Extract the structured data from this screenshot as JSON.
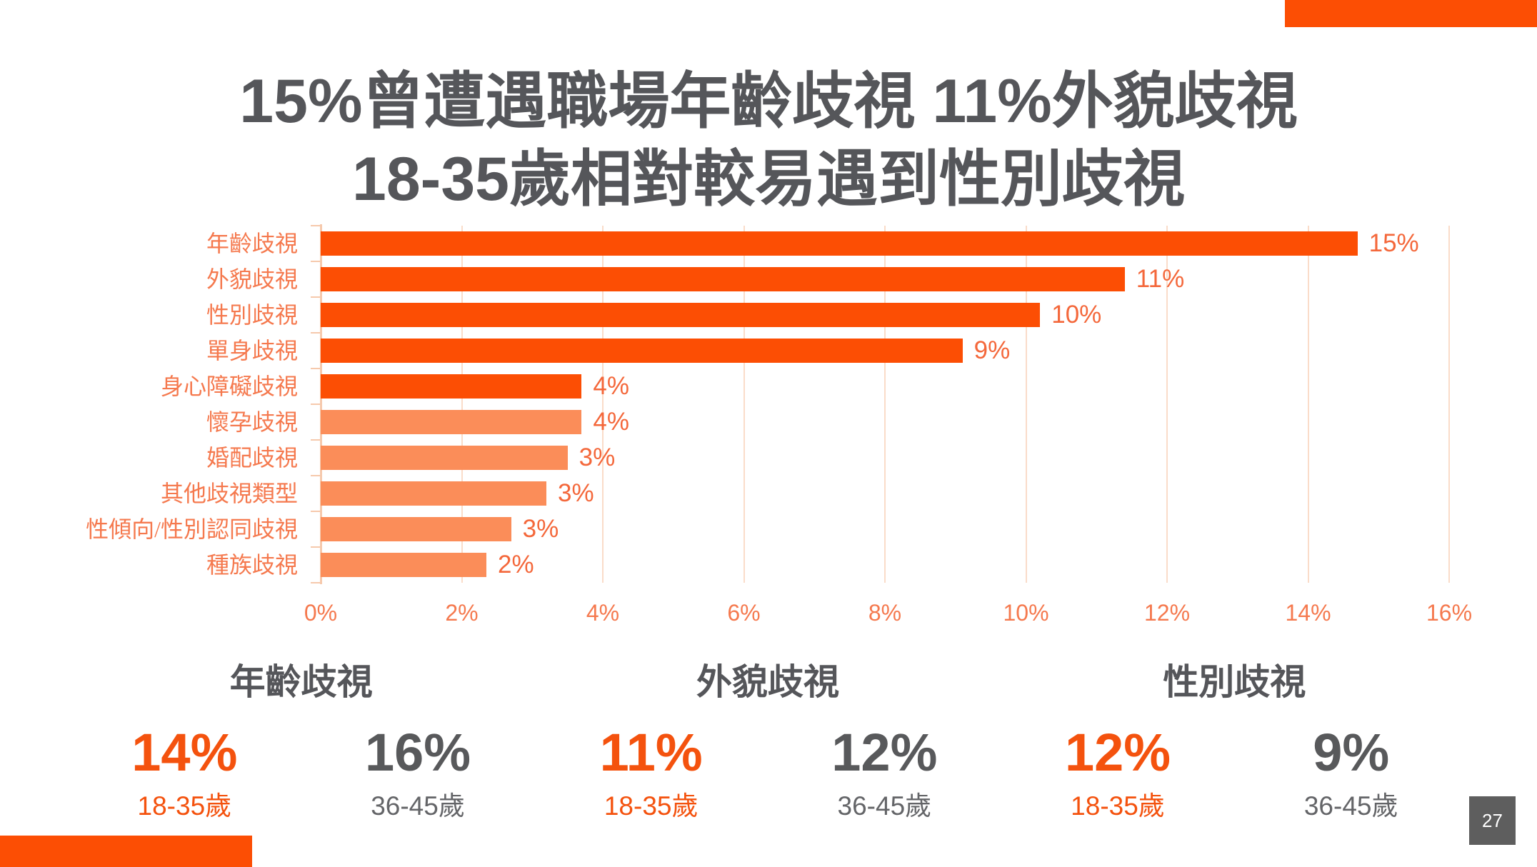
{
  "slide": {
    "title_line1": "15%曾遭遇職場年齡歧視 11%外貌歧視",
    "title_line2": "18-35歲相對較易遇到性別歧視",
    "page_number": "27"
  },
  "colors": {
    "accent": "#FC4E04",
    "bar_dark": "#FC4E04",
    "bar_light": "#FB8D59",
    "cat_label": "#F5794E",
    "value_label": "#F4673A",
    "axis_label": "#F5794E",
    "gridline": "#FADCC9",
    "axis_line": "#F6C9AC",
    "title_gray": "#55565A",
    "stat_gray": "#58595B",
    "stat_orange": "#F4520E",
    "age_gray": "#646568",
    "badge_bg": "#5E5E5E"
  },
  "chart_data": {
    "type": "bar",
    "orientation": "horizontal",
    "title": "",
    "xlabel": "",
    "ylabel": "",
    "grid": true,
    "xlim": [
      0,
      16
    ],
    "x_ticks": [
      "0%",
      "2%",
      "4%",
      "6%",
      "8%",
      "10%",
      "12%",
      "14%",
      "16%"
    ],
    "categories": [
      "年齡歧視",
      "外貌歧視",
      "性別歧視",
      "單身歧視",
      "身心障礙歧視",
      "懷孕歧視",
      "婚配歧視",
      "其他歧視類型",
      "性傾向/性別認同歧視",
      "種族歧視"
    ],
    "values": [
      14.7,
      11.4,
      10.2,
      9.1,
      3.7,
      3.7,
      3.5,
      3.2,
      2.7,
      2.35
    ],
    "value_labels": [
      "15%",
      "11%",
      "10%",
      "9%",
      "4%",
      "4%",
      "3%",
      "3%",
      "3%",
      "2%"
    ],
    "bar_styles": [
      "dark",
      "dark",
      "dark",
      "dark",
      "dark",
      "light",
      "light",
      "light",
      "light",
      "light"
    ]
  },
  "stats": [
    {
      "title": "年齡歧視",
      "primary": {
        "value": "14%",
        "label": "18-35歲"
      },
      "secondary": {
        "value": "16%",
        "label": "36-45歲"
      }
    },
    {
      "title": "外貌歧視",
      "primary": {
        "value": "11%",
        "label": "18-35歲"
      },
      "secondary": {
        "value": "12%",
        "label": "36-45歲"
      }
    },
    {
      "title": "性別歧視",
      "primary": {
        "value": "12%",
        "label": "18-35歲"
      },
      "secondary": {
        "value": "9%",
        "label": "36-45歲"
      }
    }
  ]
}
